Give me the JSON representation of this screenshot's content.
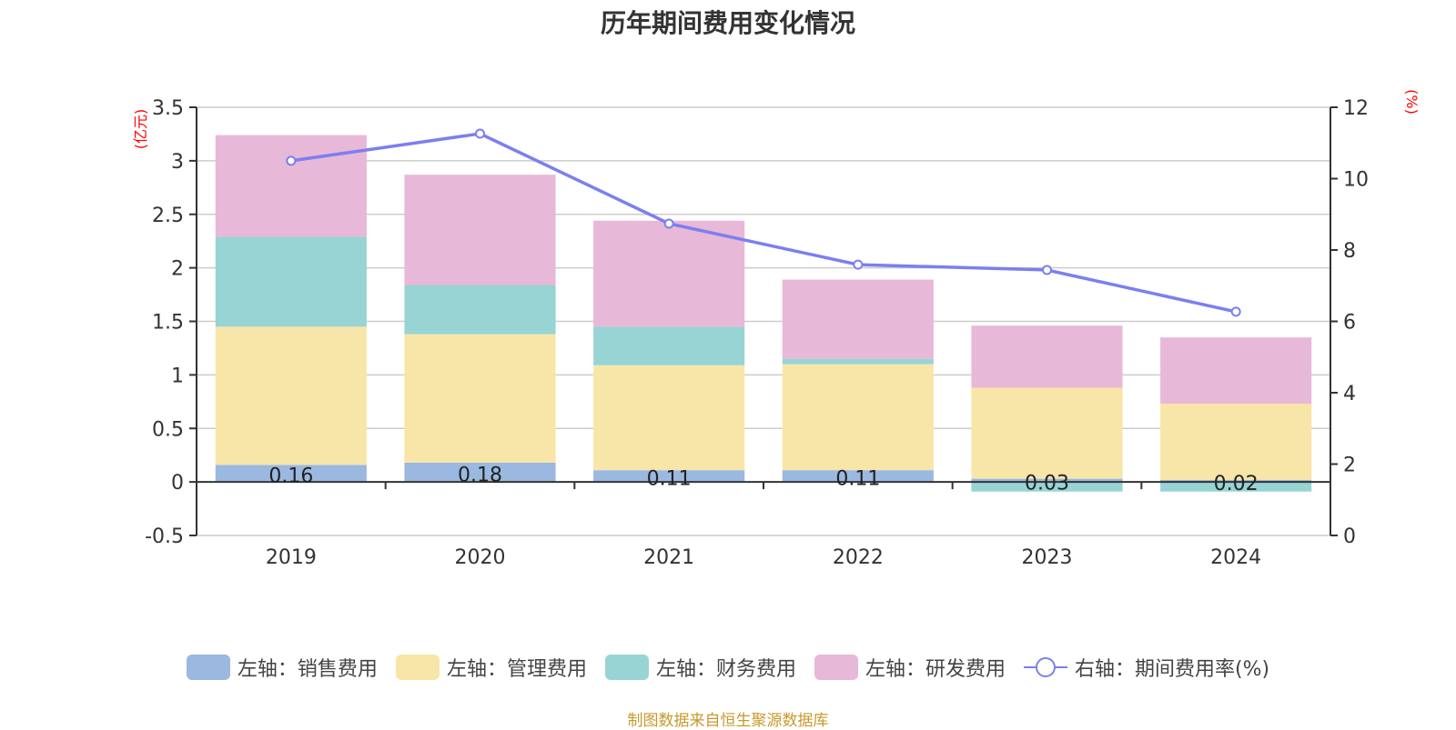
{
  "title": "历年期间费用变化情况",
  "footer": "制图数据来自恒生聚源数据库",
  "chart_data": {
    "type": "bar",
    "stacked": true,
    "title": "历年期间费用变化情况",
    "categories": [
      "2019",
      "2020",
      "2021",
      "2022",
      "2023",
      "2024"
    ],
    "left_axis": {
      "unit_label": "(亿元)",
      "ylim": [
        -0.5,
        3.5
      ],
      "ticks": [
        "3.5",
        "3",
        "2.5",
        "2",
        "1.5",
        "1",
        "0.5",
        "0",
        "-0.5"
      ],
      "tick_values": [
        3.5,
        3,
        2.5,
        2,
        1.5,
        1,
        0.5,
        0,
        -0.5
      ]
    },
    "right_axis": {
      "unit_label": "(%)",
      "ylim": [
        0,
        12
      ],
      "ticks": [
        "12",
        "10",
        "8",
        "6",
        "4",
        "2",
        "0"
      ],
      "tick_values": [
        12,
        10,
        8,
        6,
        4,
        2,
        0
      ]
    },
    "grid": true,
    "legend_position": "bottom",
    "series": [
      {
        "name": "左轴：销售费用",
        "axis": "left",
        "type": "bar",
        "color": "#9bb8e0",
        "values": [
          0.16,
          0.18,
          0.11,
          0.11,
          0.03,
          0.02
        ],
        "labels": [
          "0.16",
          "0.18",
          "0.11",
          "0.11",
          "0.03",
          "0.02"
        ]
      },
      {
        "name": "左轴：管理费用",
        "axis": "left",
        "type": "bar",
        "color": "#f8e6a8",
        "values": [
          1.29,
          1.2,
          0.98,
          0.99,
          0.85,
          0.71
        ]
      },
      {
        "name": "左轴：财务费用",
        "axis": "left",
        "type": "bar",
        "color": "#98d4d4",
        "values": [
          0.84,
          0.46,
          0.36,
          0.05,
          -0.09,
          -0.09
        ]
      },
      {
        "name": "左轴：研发费用",
        "axis": "left",
        "type": "bar",
        "color": "#e8b8d8",
        "values": [
          0.95,
          1.03,
          0.99,
          0.74,
          0.58,
          0.62
        ]
      },
      {
        "name": "右轴：期间费用率(%)",
        "axis": "right",
        "type": "line",
        "color": "#7b7ff0",
        "values": [
          10.5,
          11.26,
          8.74,
          7.59,
          7.44,
          6.27
        ]
      }
    ]
  }
}
